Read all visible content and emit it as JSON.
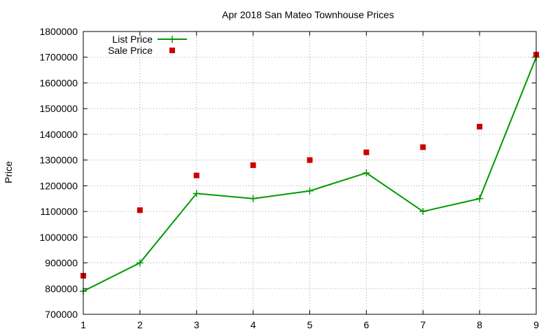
{
  "chart_data": {
    "type": "line",
    "title": "Apr 2018 San Mateo Townhouse Prices",
    "xlabel": "",
    "ylabel": "Price",
    "x": [
      1,
      2,
      3,
      4,
      5,
      6,
      7,
      8,
      9
    ],
    "xlim": [
      1,
      9
    ],
    "ylim": [
      700000,
      1800000
    ],
    "xticks": [
      "1",
      "2",
      "3",
      "4",
      "5",
      "6",
      "7",
      "8",
      "9"
    ],
    "yticks": [
      "700000",
      "800000",
      "900000",
      "1000000",
      "1100000",
      "1200000",
      "1300000",
      "1400000",
      "1500000",
      "1600000",
      "1700000",
      "1800000"
    ],
    "grid": true,
    "legend_position": "top-left",
    "series": [
      {
        "name": "List Price",
        "style": "line-with-plus-markers",
        "color": "#009900",
        "values": [
          790000,
          900000,
          1170000,
          1150000,
          1180000,
          1250000,
          1100000,
          1150000,
          1700000
        ]
      },
      {
        "name": "Sale Price",
        "style": "square-markers",
        "color": "#cc0000",
        "values": [
          850000,
          1105000,
          1240000,
          1280000,
          1300000,
          1330000,
          1350000,
          1430000,
          1710000
        ]
      }
    ]
  }
}
